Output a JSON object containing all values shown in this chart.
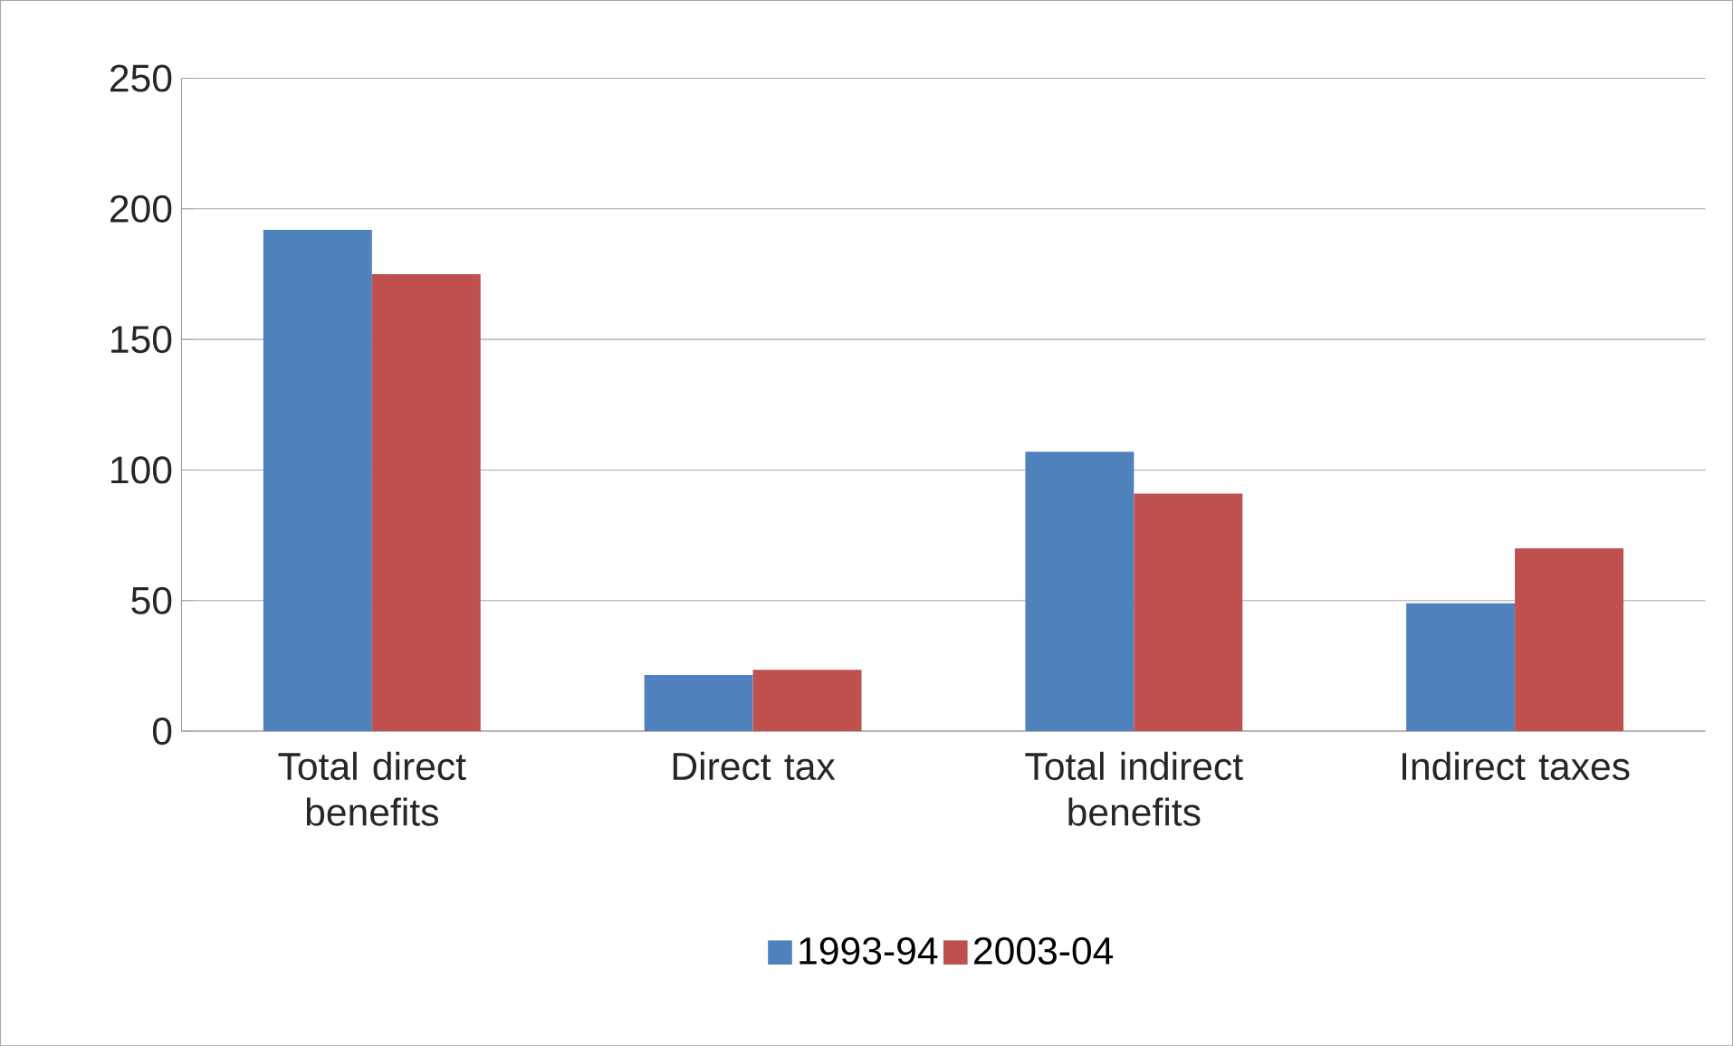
{
  "chart_data": {
    "type": "bar",
    "categories": [
      "Total direct benefits",
      "Direct tax",
      "Total indirect benefits",
      "Indirect taxes"
    ],
    "series": [
      {
        "name": "1993-94",
        "color": "#4f81bd",
        "values": [
          192,
          21.5,
          107,
          49
        ]
      },
      {
        "name": "2003-04",
        "color": "#c0504d",
        "values": [
          175,
          23.5,
          91,
          70
        ]
      }
    ],
    "ylim": [
      0,
      250
    ],
    "yticks": [
      0,
      50,
      100,
      150,
      200,
      250
    ],
    "grid": "y",
    "legend": "bottom"
  }
}
